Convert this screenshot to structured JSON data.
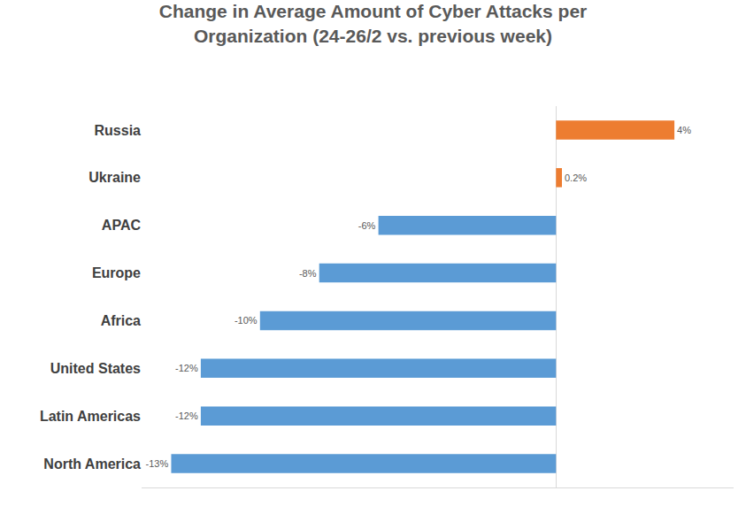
{
  "chart_data": {
    "type": "bar",
    "orientation": "horizontal",
    "title": "Change in Average Amount of Cyber Attacks per Organization (24-26/2 vs. previous week)",
    "categories": [
      "Russia",
      "Ukraine",
      "APAC",
      "Europe",
      "Africa",
      "United States",
      "Latin Americas",
      "North America"
    ],
    "values": [
      4,
      0.2,
      -6,
      -8,
      -10,
      -12,
      -12,
      -13
    ],
    "value_labels": [
      "4%",
      "0.2%",
      "-6%",
      "-8%",
      "-10%",
      "-12%",
      "-12%",
      "-13%"
    ],
    "colors": [
      "#ed7d31",
      "#ed7d31",
      "#5b9bd5",
      "#5b9bd5",
      "#5b9bd5",
      "#5b9bd5",
      "#5b9bd5",
      "#5b9bd5"
    ],
    "data_labels": true,
    "tick_labels": "y",
    "grid": false,
    "xlim": [
      -14,
      6
    ]
  }
}
